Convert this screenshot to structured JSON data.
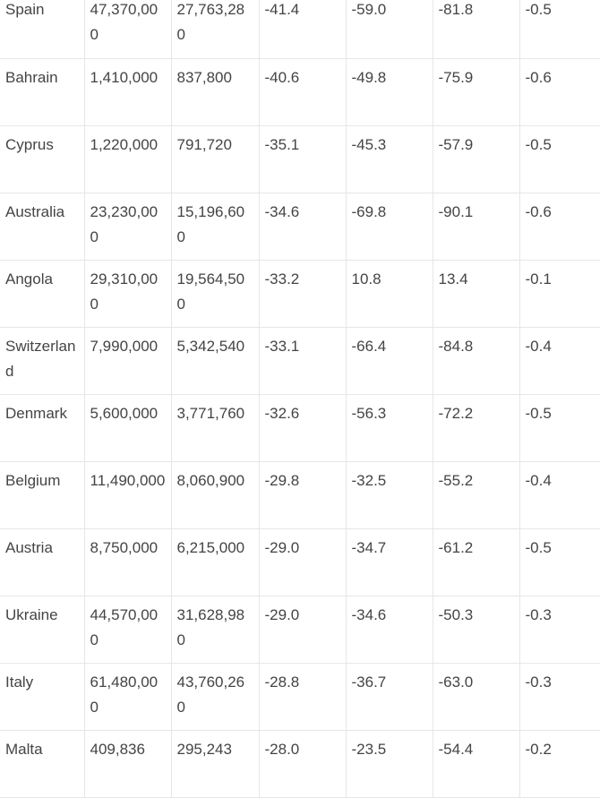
{
  "table": {
    "rows": [
      [
        "Spain",
        "47,370,000",
        "27,763,280",
        "-41.4",
        "-59.0",
        "-81.8",
        "-0.5"
      ],
      [
        "Bahrain",
        "1,410,000",
        "837,800",
        "-40.6",
        "-49.8",
        "-75.9",
        "-0.6"
      ],
      [
        "Cyprus",
        "1,220,000",
        "791,720",
        "-35.1",
        "-45.3",
        "-57.9",
        "-0.5"
      ],
      [
        "Australia",
        "23,230,000",
        "15,196,600",
        "-34.6",
        "-69.8",
        "-90.1",
        "-0.6"
      ],
      [
        "Angola",
        "29,310,000",
        "19,564,500",
        "-33.2",
        "10.8",
        "13.4",
        "-0.1"
      ],
      [
        "Switzerland",
        "7,990,000",
        "5,342,540",
        "-33.1",
        "-66.4",
        "-84.8",
        "-0.4"
      ],
      [
        "Denmark",
        "5,600,000",
        "3,771,760",
        "-32.6",
        "-56.3",
        "-72.2",
        "-0.5"
      ],
      [
        "Belgium",
        "11,490,000",
        "8,060,900",
        "-29.8",
        "-32.5",
        "-55.2",
        "-0.4"
      ],
      [
        "Austria",
        "8,750,000",
        "6,215,000",
        "-29.0",
        "-34.7",
        "-61.2",
        "-0.5"
      ],
      [
        "Ukraine",
        "44,570,000",
        "31,628,980",
        "-29.0",
        "-34.6",
        "-50.3",
        "-0.3"
      ],
      [
        "Italy",
        "61,480,000",
        "43,760,260",
        "-28.8",
        "-36.7",
        "-63.0",
        "-0.3"
      ],
      [
        "Malta",
        "409,836",
        "295,243",
        "-28.0",
        "-23.5",
        "-54.4",
        "-0.2"
      ]
    ]
  }
}
